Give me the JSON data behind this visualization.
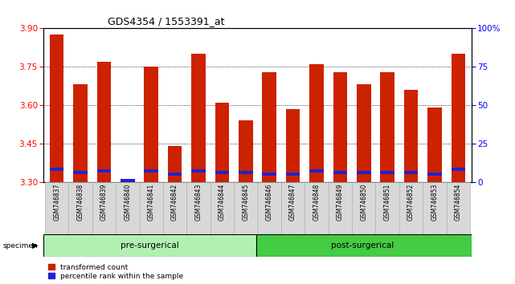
{
  "title": "GDS4354 / 1553391_at",
  "samples": [
    "GSM746837",
    "GSM746838",
    "GSM746839",
    "GSM746840",
    "GSM746841",
    "GSM746842",
    "GSM746843",
    "GSM746844",
    "GSM746845",
    "GSM746846",
    "GSM746847",
    "GSM746848",
    "GSM746849",
    "GSM746850",
    "GSM746851",
    "GSM746852",
    "GSM746853",
    "GSM746854"
  ],
  "transformed_count": [
    3.875,
    3.68,
    3.77,
    3.3,
    3.75,
    3.44,
    3.8,
    3.61,
    3.54,
    3.73,
    3.585,
    3.76,
    3.73,
    3.68,
    3.73,
    3.66,
    3.59,
    3.8
  ],
  "percentile_rank": [
    8,
    6,
    7,
    1,
    7,
    5,
    7,
    6,
    6,
    5,
    5,
    7,
    6,
    6,
    6,
    6,
    5,
    8
  ],
  "ylim_left": [
    3.3,
    3.9
  ],
  "ylim_right": [
    0,
    100
  ],
  "yticks_left": [
    3.3,
    3.45,
    3.6,
    3.75,
    3.9
  ],
  "yticks_right": [
    0,
    25,
    50,
    75,
    100
  ],
  "bar_color_red": "#cc2200",
  "bar_color_blue": "#2222cc",
  "pre_surgical_count": 9,
  "post_surgical_count": 9,
  "group_label_pre": "pre-surgerical",
  "group_label_post": "post-surgerical",
  "specimen_label": "specimen",
  "legend_red": "transformed count",
  "legend_blue": "percentile rank within the sample",
  "bg_xlabel": "#d8d8d8",
  "bg_group_pre": "#b2f0b2",
  "bg_group_post": "#44cc44",
  "bar_width": 0.6,
  "base_value": 3.3
}
